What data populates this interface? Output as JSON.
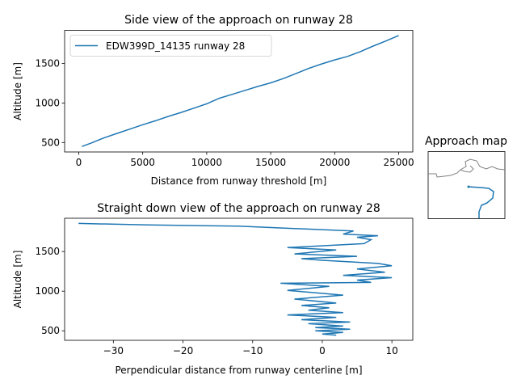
{
  "chart_data": [
    {
      "type": "line",
      "title": "Side view of the approach on runway 28",
      "xlabel": "Distance from runway threshold [m]",
      "ylabel": "Altitude [m]",
      "xlim": [
        -1100,
        26100
      ],
      "ylim": [
        380,
        1920
      ],
      "xticks": [
        0,
        5000,
        10000,
        15000,
        20000,
        25000
      ],
      "yticks": [
        500,
        1000,
        1500
      ],
      "legend": "upper-left",
      "color": "#1f77b4",
      "series": [
        {
          "name": "EDW399D_14135 runway 28",
          "x": [
            250,
            1000,
            2000,
            3000,
            4000,
            5000,
            6000,
            7000,
            8000,
            9000,
            10000,
            11000,
            12000,
            13000,
            14000,
            15000,
            16000,
            17000,
            18000,
            19000,
            20000,
            21000,
            22000,
            23000,
            24000,
            25000
          ],
          "y": [
            450,
            495,
            560,
            615,
            670,
            725,
            775,
            830,
            880,
            935,
            990,
            1060,
            1110,
            1160,
            1210,
            1255,
            1310,
            1375,
            1440,
            1495,
            1545,
            1590,
            1650,
            1720,
            1785,
            1855
          ]
        }
      ]
    },
    {
      "type": "line",
      "title": "Straight down view of the approach on runway 28",
      "xlabel": "Perpendicular distance from runway centerline [m]",
      "ylabel": "Altitude [m]",
      "xlim": [
        -37,
        13
      ],
      "ylim": [
        380,
        1920
      ],
      "xticks": [
        -30,
        -20,
        -10,
        0,
        10
      ],
      "yticks": [
        500,
        1000,
        1500
      ],
      "color": "#1f77b4",
      "series": [
        {
          "x": [
            -35,
            -25,
            -12,
            -4,
            4.5,
            3,
            8,
            5,
            7,
            6,
            -5,
            2,
            -4,
            5,
            -3,
            0,
            8,
            10,
            5,
            9,
            3,
            10,
            5,
            7,
            -6,
            1,
            -5,
            3,
            -4,
            2,
            -3,
            1,
            -2,
            3,
            -5,
            2,
            -3,
            4,
            -2,
            3,
            -1,
            4,
            -1,
            3,
            0,
            2
          ],
          "y": [
            1855,
            1835,
            1820,
            1790,
            1760,
            1720,
            1700,
            1680,
            1650,
            1600,
            1550,
            1520,
            1470,
            1440,
            1410,
            1390,
            1350,
            1320,
            1280,
            1240,
            1200,
            1170,
            1140,
            1110,
            1100,
            1060,
            1010,
            950,
            900,
            850,
            820,
            790,
            760,
            730,
            700,
            670,
            640,
            610,
            590,
            560,
            540,
            520,
            500,
            480,
            460,
            445
          ]
        }
      ]
    }
  ],
  "map_title": "Approach map"
}
